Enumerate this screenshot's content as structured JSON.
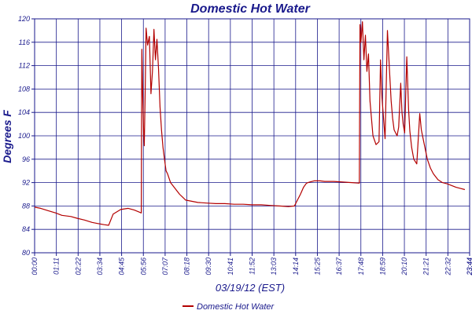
{
  "chart_data": {
    "type": "line",
    "title": "Domestic Hot Water",
    "xlabel": "03/19/12 (EST)",
    "ylabel": "Degrees F",
    "ylim": [
      80,
      120
    ],
    "yticks": [
      80,
      84,
      88,
      92,
      96,
      100,
      104,
      108,
      112,
      116,
      120
    ],
    "xlim_minutes": [
      0,
      1440
    ],
    "xtick_labels": [
      "00:00",
      "01:11",
      "02:22",
      "03:34",
      "04:45",
      "05:56",
      "07:07",
      "08:18",
      "09:30",
      "10:41",
      "11:52",
      "13:03",
      "14:14",
      "15:25",
      "16:37",
      "17:48",
      "18:59",
      "20:10",
      "21:21",
      "22:32",
      "23:44",
      "23:44"
    ],
    "grid": true,
    "legend_position": "bottom-center",
    "colors": {
      "series": "#b30000",
      "grid": "#1a1a8c",
      "text": "#1a1a8c"
    },
    "series": [
      {
        "name": "Domestic Hot Water",
        "x": [
          "00:00",
          "00:20",
          "00:45",
          "01:10",
          "01:30",
          "02:00",
          "02:20",
          "02:45",
          "03:10",
          "03:30",
          "03:50",
          "04:05",
          "04:20",
          "04:45",
          "05:10",
          "05:30",
          "05:45",
          "05:53",
          "05:55",
          "05:58",
          "06:01",
          "06:03",
          "06:06",
          "06:09",
          "06:14",
          "06:20",
          "06:25",
          "06:30",
          "06:35",
          "06:40",
          "06:45",
          "06:50",
          "06:55",
          "07:00",
          "07:05",
          "07:10",
          "07:15",
          "07:20",
          "07:30",
          "07:45",
          "08:00",
          "08:10",
          "08:20",
          "08:40",
          "09:00",
          "09:30",
          "10:00",
          "10:30",
          "11:00",
          "11:30",
          "12:00",
          "12:30",
          "13:00",
          "13:30",
          "14:00",
          "14:20",
          "14:30",
          "14:40",
          "14:50",
          "15:00",
          "15:10",
          "15:25",
          "15:45",
          "16:00",
          "16:30",
          "17:00",
          "17:30",
          "17:55",
          "17:57",
          "18:00",
          "18:05",
          "18:10",
          "18:15",
          "18:20",
          "18:25",
          "18:30",
          "18:35",
          "18:40",
          "18:50",
          "19:00",
          "19:05",
          "19:10",
          "19:20",
          "19:28",
          "19:35",
          "19:40",
          "19:45",
          "19:50",
          "20:00",
          "20:05",
          "20:12",
          "20:16",
          "20:20",
          "20:25",
          "20:32",
          "20:38",
          "20:42",
          "20:48",
          "20:55",
          "21:05",
          "21:15",
          "21:20",
          "21:30",
          "21:40",
          "21:50",
          "22:00",
          "22:15",
          "22:30",
          "22:45",
          "23:00",
          "23:15",
          "23:30",
          "23:44"
        ],
        "values": [
          87.8,
          87.6,
          87.2,
          86.8,
          86.4,
          86.2,
          85.9,
          85.6,
          85.2,
          85.0,
          84.8,
          84.7,
          86.6,
          87.4,
          87.6,
          87.3,
          87.0,
          86.8,
          114.8,
          106.5,
          100.5,
          98.3,
          108.0,
          118.4,
          115.5,
          117.0,
          107.2,
          111.0,
          118.2,
          113.0,
          116.5,
          111.5,
          105.0,
          101.0,
          98.0,
          96.0,
          94.0,
          93.5,
          92.0,
          91.0,
          90.0,
          89.5,
          89.0,
          88.8,
          88.6,
          88.5,
          88.4,
          88.4,
          88.3,
          88.3,
          88.2,
          88.2,
          88.1,
          88.0,
          87.9,
          88.0,
          89.0,
          90.0,
          91.2,
          91.9,
          92.1,
          92.3,
          92.3,
          92.2,
          92.2,
          92.1,
          92.0,
          91.9,
          119.0,
          116.0,
          119.5,
          113.0,
          117.2,
          111.0,
          114.0,
          106.0,
          103.0,
          100.0,
          98.5,
          99.0,
          113.0,
          106.5,
          99.5,
          118.0,
          111.0,
          106.0,
          103.0,
          101.0,
          100.0,
          101.5,
          109.0,
          104.0,
          102.0,
          100.5,
          113.5,
          104.5,
          100.8,
          98.0,
          96.0,
          95.2,
          103.8,
          101.0,
          98.5,
          96.0,
          94.5,
          93.5,
          92.5,
          92.0,
          91.8,
          91.5,
          91.2,
          91.0,
          90.8
        ]
      }
    ]
  }
}
